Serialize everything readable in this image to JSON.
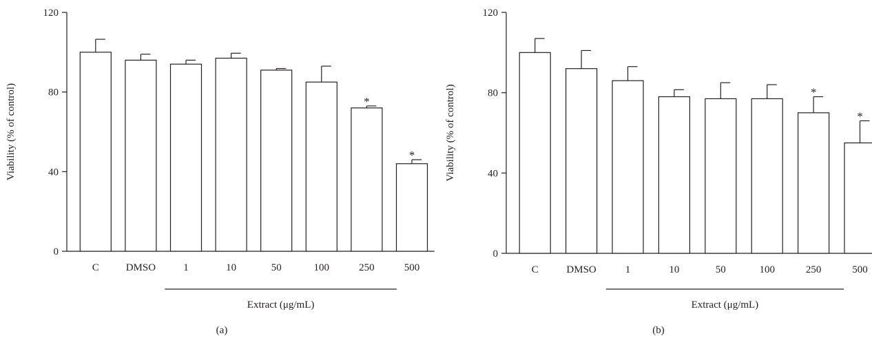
{
  "chart_data": [
    {
      "type": "bar",
      "panel_label": "(a)",
      "categories": [
        "C",
        "DMSO",
        "1",
        "10",
        "50",
        "100",
        "250",
        "500"
      ],
      "values": [
        100,
        96,
        94,
        97,
        91,
        85,
        72,
        44
      ],
      "errors": [
        6.5,
        3,
        2,
        2.5,
        0.8,
        8,
        1,
        2
      ],
      "significant": [
        false,
        false,
        false,
        false,
        false,
        false,
        true,
        true
      ],
      "significance_marker": "*",
      "ylabel": "Viability (% of control)",
      "yticks": [
        "0",
        "40",
        "80",
        "120"
      ],
      "ylim": [
        0,
        120
      ],
      "group_label": "Extract (μg/mL)",
      "group_start_index": 2,
      "bar_fill": "#ffffff",
      "bar_stroke": "#231f20"
    },
    {
      "type": "bar",
      "panel_label": "(b)",
      "categories": [
        "C",
        "DMSO",
        "1",
        "10",
        "50",
        "100",
        "250",
        "500"
      ],
      "values": [
        100,
        92,
        86,
        78,
        77,
        77,
        70,
        55
      ],
      "errors": [
        7,
        9,
        7,
        3.5,
        8,
        7,
        8,
        11
      ],
      "significant": [
        false,
        false,
        false,
        false,
        false,
        false,
        true,
        true
      ],
      "significance_marker": "*",
      "ylabel": "Viability (% of control)",
      "yticks": [
        "0",
        "40",
        "80",
        "120"
      ],
      "ylim": [
        0,
        120
      ],
      "group_label": "Extract (μg/mL)",
      "group_start_index": 2,
      "bar_fill": "#ffffff",
      "bar_stroke": "#231f20"
    }
  ]
}
